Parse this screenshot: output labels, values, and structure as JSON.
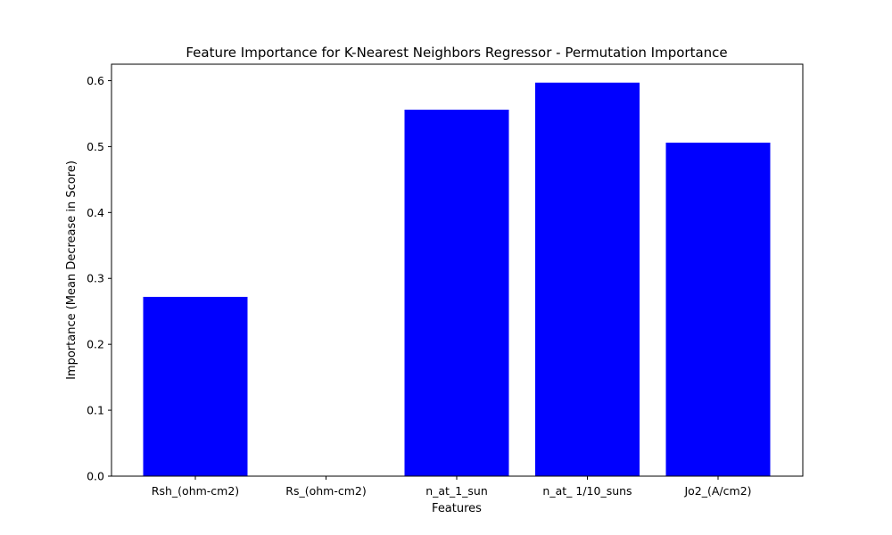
{
  "chart_data": {
    "type": "bar",
    "title": "Feature Importance for K-Nearest Neighbors Regressor - Permutation Importance",
    "xlabel": "Features",
    "ylabel": "Importance (Mean Decrease in Score)",
    "categories": [
      "Rsh_(ohm-cm2)",
      "Rs_(ohm-cm2)",
      "n_at_1_sun",
      "n_at_ 1/10_suns",
      "Jo2_(A/cm2)"
    ],
    "values": [
      0.272,
      0.0,
      0.556,
      0.597,
      0.506
    ],
    "ylim": [
      0,
      0.625
    ],
    "yticks": [
      0.0,
      0.1,
      0.2,
      0.3,
      0.4,
      0.5,
      0.6
    ],
    "ytick_labels": [
      "0.0",
      "0.1",
      "0.2",
      "0.3",
      "0.4",
      "0.5",
      "0.6"
    ],
    "bar_color": "#0000ff",
    "grid": false,
    "legend": "none"
  }
}
